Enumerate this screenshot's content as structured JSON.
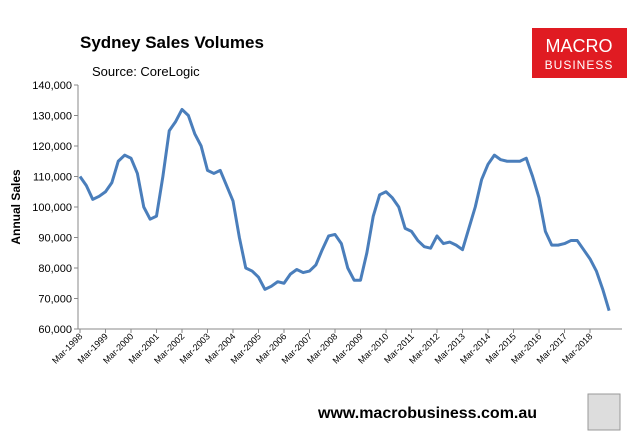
{
  "chart_data": {
    "type": "line",
    "title": "Sydney Sales Volumes",
    "subtitle": "Source: CoreLogic",
    "y_label": "Annual Sales",
    "footer": "www.macrobusiness.com.au",
    "logo": [
      "MACRO",
      "BUSINESS"
    ],
    "categories": [
      "Mar-1998",
      null,
      null,
      null,
      "Mar-1999",
      null,
      null,
      null,
      "Mar-2000",
      null,
      null,
      null,
      "Mar-2001",
      null,
      null,
      null,
      "Mar-2002",
      null,
      null,
      null,
      "Mar-2003",
      null,
      null,
      null,
      "Mar-2004",
      null,
      null,
      null,
      "Mar-2005",
      null,
      null,
      null,
      "Mar-2006",
      null,
      null,
      null,
      "Mar-2007",
      null,
      null,
      null,
      "Mar-2008",
      null,
      null,
      null,
      "Mar-2009",
      null,
      null,
      null,
      "Mar-2010",
      null,
      null,
      null,
      "Mar-2011",
      null,
      null,
      null,
      "Mar-2012",
      null,
      null,
      null,
      "Mar-2013",
      null,
      null,
      null,
      "Mar-2014",
      null,
      null,
      null,
      "Mar-2015",
      null,
      null,
      null,
      "Mar-2016",
      null,
      null,
      null,
      "Mar-2017",
      null,
      null,
      null,
      "Mar-2018",
      null,
      null,
      null
    ],
    "series": [
      {
        "name": "Annual Sales",
        "color": "#4a7ebb",
        "values": [
          110000,
          107000,
          102500,
          103500,
          105000,
          108000,
          115000,
          117000,
          116000,
          111000,
          100000,
          96000,
          97000,
          110000,
          125000,
          128000,
          132000,
          130000,
          124000,
          120000,
          112000,
          111000,
          112000,
          107000,
          102000,
          90000,
          80000,
          79000,
          77000,
          73000,
          74000,
          75500,
          75000,
          78000,
          79500,
          78500,
          79000,
          81000,
          86000,
          90500,
          91000,
          88000,
          80000,
          76000,
          76000,
          85000,
          97000,
          104000,
          105000,
          103000,
          100000,
          93000,
          92000,
          89000,
          87000,
          86500,
          90500,
          88000,
          88500,
          87500,
          86000,
          93000,
          100000,
          109000,
          114000,
          117000,
          115500,
          115000,
          115000,
          115000,
          116000,
          110000,
          103000,
          92000,
          87500,
          87500,
          88000,
          89000,
          89000,
          86000,
          83000,
          79000,
          73000,
          66000
        ]
      }
    ],
    "ylim": [
      60000,
      140000
    ],
    "yticks": [
      {
        "value": 60000,
        "label": "60,000"
      },
      {
        "value": 70000,
        "label": "70,000"
      },
      {
        "value": 80000,
        "label": "80,000"
      },
      {
        "value": 90000,
        "label": "90,000"
      },
      {
        "value": 100000,
        "label": "100,000"
      },
      {
        "value": 110000,
        "label": "110,000"
      },
      {
        "value": 120000,
        "label": "120,000"
      },
      {
        "value": 130000,
        "label": "130,000"
      },
      {
        "value": 140000,
        "label": "140,000"
      }
    ],
    "grid": false
  }
}
